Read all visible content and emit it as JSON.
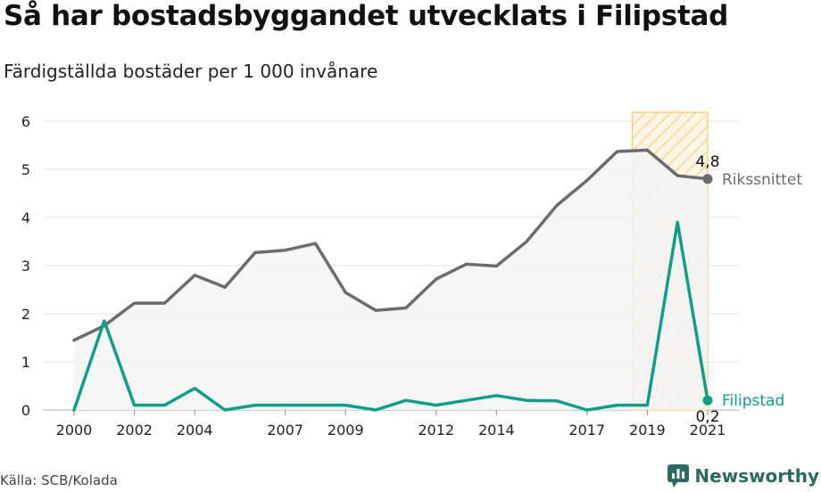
{
  "title": "Så har bostadsbyggandet utvecklats i Filipstad",
  "subtitle": "Färdigställda bostäder per 1 000 invånare",
  "source": "Källa: SCB/Kolada",
  "brand": {
    "name": "Newsworthy",
    "icon": "newsworthy-logo-icon",
    "color": "#2b6b5f"
  },
  "chart_data": {
    "type": "line",
    "x": [
      2000,
      2001,
      2002,
      2003,
      2004,
      2005,
      2006,
      2007,
      2008,
      2009,
      2010,
      2011,
      2012,
      2013,
      2014,
      2015,
      2016,
      2017,
      2018,
      2019,
      2020,
      2021
    ],
    "x_ticks": [
      "2000",
      "2002",
      "2004",
      "2007",
      "2009",
      "2012",
      "2014",
      "2017",
      "2019",
      "2021"
    ],
    "y_ticks": [
      "0",
      "1",
      "2",
      "3",
      "4",
      "5",
      "6"
    ],
    "ylim": [
      0,
      6
    ],
    "grid": true,
    "highlight": {
      "from": 2018.5,
      "to": 2021,
      "color": "#f5c86a"
    },
    "series": [
      {
        "name": "Rikssnittet",
        "color": "#6d6b70",
        "values": [
          1.45,
          1.75,
          2.22,
          2.22,
          2.8,
          2.55,
          3.27,
          3.32,
          3.46,
          2.44,
          2.07,
          2.12,
          2.72,
          3.03,
          2.99,
          3.5,
          4.25,
          4.77,
          5.37,
          5.4,
          4.87,
          4.8
        ],
        "end_label": "4,8"
      },
      {
        "name": "Filipstad",
        "color": "#0e9e8a",
        "values": [
          0,
          1.85,
          0.1,
          0.1,
          0.45,
          0,
          0.1,
          0.1,
          0.1,
          0.1,
          0,
          0.2,
          0.1,
          0.2,
          0.3,
          0.2,
          0.19,
          0,
          0.1,
          0.1,
          3.9,
          0.2
        ],
        "end_label": "0,2"
      }
    ]
  }
}
